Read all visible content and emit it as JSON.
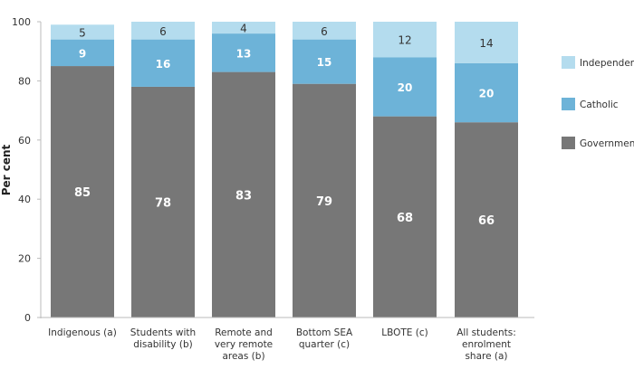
{
  "chart_data": {
    "type": "bar",
    "stacked": true,
    "ylabel": "Per cent",
    "ylim": [
      0,
      100
    ],
    "yticks": [
      0,
      20,
      40,
      60,
      80,
      100
    ],
    "grid": false,
    "legend_position": "right",
    "categories": [
      [
        "Indigenous (a)"
      ],
      [
        "Students with",
        "disability (b)"
      ],
      [
        "Remote and",
        "very remote",
        "areas (b)"
      ],
      [
        "Bottom SEA",
        "quarter (c)"
      ],
      [
        "LBOTE (c)"
      ],
      [
        "All students:",
        "enrolment",
        "share (a)"
      ]
    ],
    "series": [
      {
        "name": "Government",
        "color": "#777777",
        "label_color": "#ffffff",
        "values": [
          85,
          78,
          83,
          79,
          68,
          66
        ]
      },
      {
        "name": "Catholic",
        "color": "#6db3d8",
        "label_color": "#ffffff",
        "values": [
          9,
          16,
          13,
          15,
          20,
          20
        ]
      },
      {
        "name": "Independent",
        "color": "#b4dcee",
        "label_color": "#333333",
        "values": [
          5,
          6,
          4,
          6,
          12,
          14
        ]
      }
    ]
  }
}
